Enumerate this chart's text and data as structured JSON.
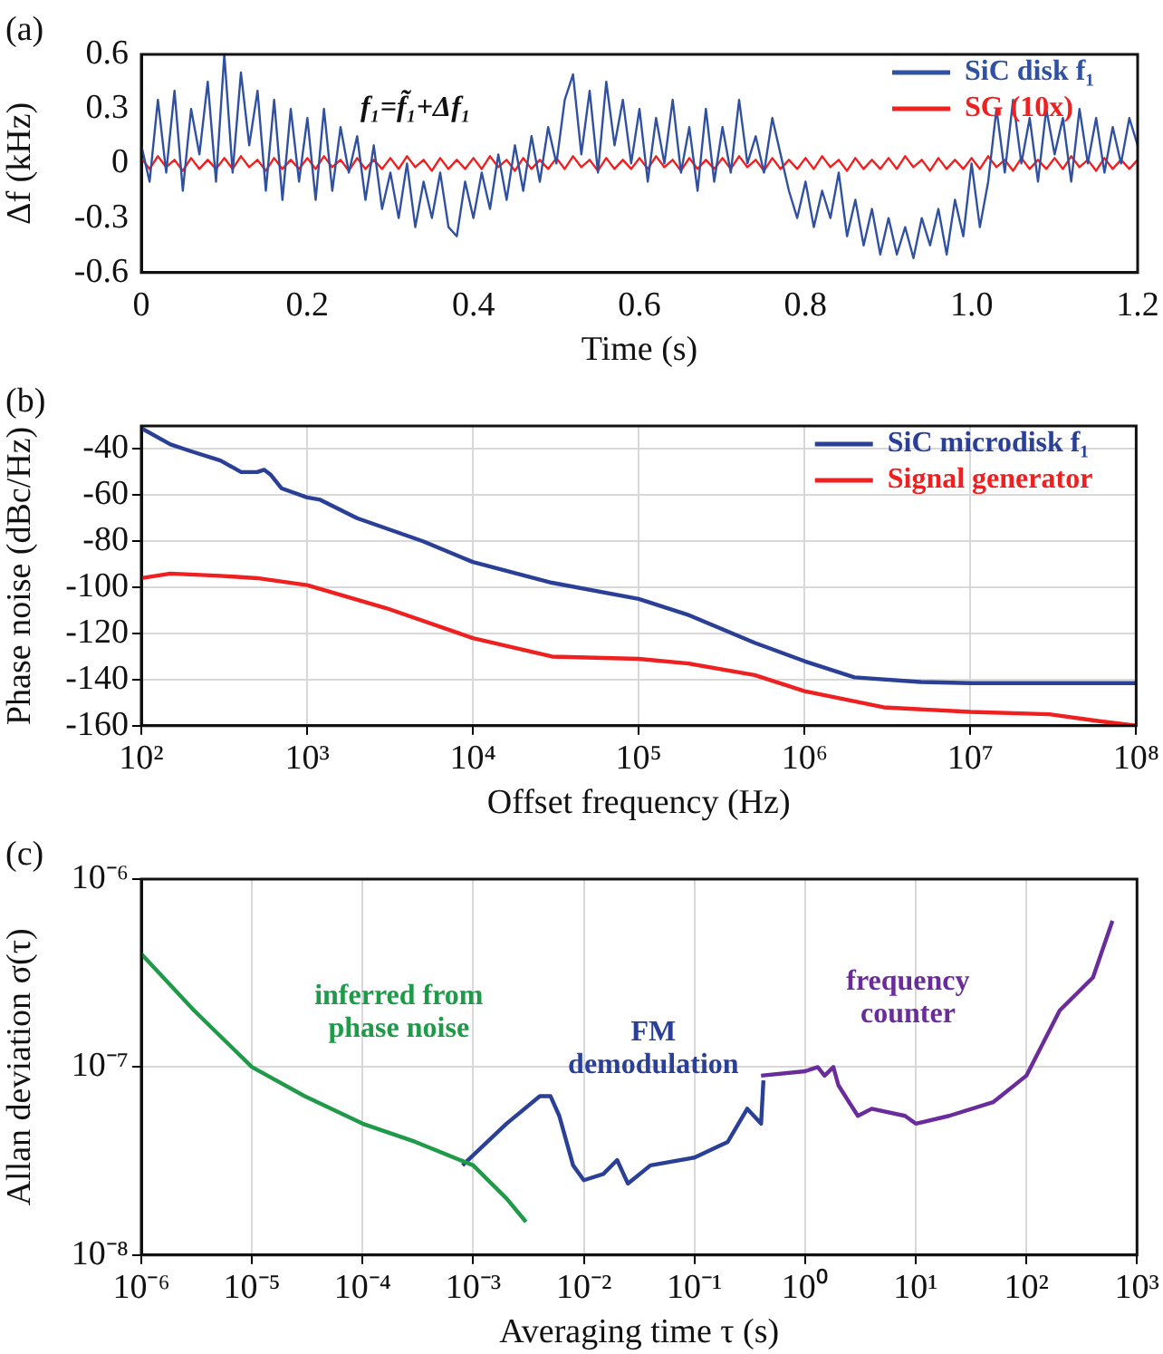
{
  "chart_data": [
    {
      "type": "line",
      "title": "(a)",
      "xlabel": "Time (s)",
      "ylabel": "Δf (kHz)",
      "annotations": [
        "f₁=f̃₁+Δf₁"
      ],
      "legend": "top right",
      "grid": false,
      "xlim": [
        0,
        1.2
      ],
      "xticks": [
        0,
        0.2,
        0.4,
        0.6,
        0.8,
        {
          "value": 1,
          "label": "1.0"
        },
        1.2
      ],
      "ylim": [
        -0.6,
        0.6
      ],
      "yticks": [
        -0.6,
        -0.3,
        0,
        0.3,
        0.6
      ],
      "x": [
        0,
        0.01,
        0.02,
        0.03,
        0.04,
        0.05,
        0.06,
        0.07,
        0.08,
        0.09,
        0.1,
        0.11,
        0.12,
        0.13,
        0.14,
        0.15,
        0.16,
        0.17,
        0.18,
        0.19,
        0.2,
        0.21,
        0.22,
        0.23,
        0.24,
        0.25,
        0.26,
        0.27,
        0.28,
        0.29,
        0.3,
        0.31,
        0.32,
        0.33,
        0.34,
        0.35,
        0.36,
        0.37,
        0.38,
        0.39,
        0.4,
        0.41,
        0.42,
        0.43,
        0.44,
        0.45,
        0.46,
        0.47,
        0.48,
        0.49,
        0.5,
        0.51,
        0.52,
        0.53,
        0.54,
        0.55,
        0.56,
        0.57,
        0.58,
        0.59,
        0.6,
        0.61,
        0.62,
        0.63,
        0.64,
        0.65,
        0.66,
        0.67,
        0.68,
        0.69,
        0.7,
        0.71,
        0.72,
        0.73,
        0.74,
        0.75,
        0.76,
        0.77,
        0.78,
        0.79,
        0.8,
        0.81,
        0.82,
        0.83,
        0.84,
        0.85,
        0.86,
        0.87,
        0.88,
        0.89,
        0.9,
        0.91,
        0.92,
        0.93,
        0.94,
        0.95,
        0.96,
        0.97,
        0.98,
        0.99,
        1,
        1.01,
        1.02,
        1.03,
        1.04,
        1.05,
        1.06,
        1.07,
        1.08,
        1.09,
        1.1,
        1.11,
        1.12,
        1.13,
        1.14,
        1.15,
        1.16,
        1.17,
        1.18,
        1.19,
        1.2
      ],
      "series": [
        {
          "name": "SiC disk f₁",
          "color": "#3050a0",
          "values": [
            0.1,
            -0.1,
            0.35,
            -0.05,
            0.4,
            -0.15,
            0.3,
            0.05,
            0.45,
            -0.1,
            0.6,
            -0.05,
            0.5,
            0.1,
            0.4,
            -0.15,
            0.35,
            -0.2,
            0.3,
            -0.1,
            0.25,
            -0.2,
            0.3,
            -0.15,
            0.2,
            -0.05,
            0.15,
            -0.2,
            0.1,
            -0.25,
            -0.05,
            -0.3,
            0,
            -0.35,
            -0.1,
            -0.3,
            -0.05,
            -0.35,
            -0.4,
            -0.1,
            -0.3,
            -0.05,
            -0.25,
            0.05,
            -0.2,
            0.1,
            -0.15,
            0.15,
            -0.1,
            0.2,
            0,
            0.35,
            0.49,
            0.05,
            0.4,
            -0.05,
            0.45,
            0.1,
            0.35,
            0,
            0.3,
            -0.1,
            0.25,
            0,
            0.35,
            -0.05,
            0.2,
            -0.15,
            0.3,
            -0.1,
            0.2,
            -0.05,
            0.35,
            0,
            0.15,
            -0.05,
            0.25,
            0.05,
            -0.15,
            -0.3,
            -0.1,
            -0.35,
            -0.15,
            -0.3,
            -0.05,
            -0.4,
            -0.2,
            -0.45,
            -0.25,
            -0.5,
            -0.3,
            -0.5,
            -0.35,
            -0.52,
            -0.3,
            -0.45,
            -0.25,
            -0.5,
            -0.2,
            -0.4,
            0,
            -0.35,
            -0.1,
            0.3,
            -0.05,
            0.35,
            0,
            0.25,
            -0.1,
            0.3,
            0.05,
            0.25,
            -0.1,
            0.3,
            0,
            0.25,
            -0.05,
            0.2,
            0,
            0.25,
            0.1
          ]
        },
        {
          "name": "SG (10x)",
          "color": "#ee2020",
          "values": [
            0.03,
            -0.03,
            0.04,
            -0.02,
            0.02,
            -0.04,
            0.03,
            -0.03,
            0.02,
            -0.03,
            0.03,
            -0.03,
            0.04,
            -0.02,
            0.02,
            -0.04,
            0.03,
            -0.03,
            0.02,
            -0.03,
            0.03,
            -0.03,
            0.04,
            -0.02,
            0.02,
            -0.04,
            0.03,
            -0.03,
            0.02,
            -0.03,
            0.03,
            -0.03,
            0.04,
            -0.02,
            0.02,
            -0.04,
            0.03,
            -0.03,
            0.02,
            -0.03,
            0.03,
            -0.03,
            0.04,
            -0.02,
            0.02,
            -0.04,
            0.03,
            -0.03,
            0.02,
            -0.03,
            0.03,
            -0.03,
            0.04,
            -0.02,
            0.02,
            -0.04,
            0.03,
            -0.03,
            0.02,
            -0.03,
            0.03,
            -0.03,
            0.04,
            -0.02,
            0.02,
            -0.04,
            0.03,
            -0.03,
            0.02,
            -0.03,
            0.03,
            -0.03,
            0.04,
            -0.02,
            0.02,
            -0.04,
            0.03,
            -0.03,
            0.02,
            -0.03,
            0.03,
            -0.03,
            0.04,
            -0.02,
            0.02,
            -0.04,
            0.03,
            -0.03,
            0.02,
            -0.03,
            0.03,
            -0.03,
            0.04,
            -0.02,
            0.02,
            -0.04,
            0.03,
            -0.03,
            0.02,
            -0.03,
            0.03,
            -0.03,
            0.04,
            -0.02,
            0.02,
            -0.04,
            0.03,
            -0.03,
            0.02,
            -0.03,
            0.03,
            -0.03,
            0.04,
            -0.02,
            0.02,
            -0.04,
            0.03,
            -0.03,
            0.02,
            -0.03,
            0.02
          ]
        }
      ]
    },
    {
      "type": "line",
      "title": "(b)",
      "xlabel": "Offset frequency (Hz)",
      "ylabel": "Phase noise (dBc/Hz)",
      "legend": "top right",
      "grid": true,
      "log": "x",
      "xlim": [
        100,
        100000000
      ],
      "xticks": [
        {
          "value": 100,
          "label": "10²"
        },
        {
          "value": 1000,
          "label": "10³"
        },
        {
          "value": 10000,
          "label": "10⁴"
        },
        {
          "value": 100000,
          "label": "10⁵"
        },
        {
          "value": 1000000,
          "label": "10⁶"
        },
        {
          "value": 10000000,
          "label": "10⁷"
        },
        {
          "value": 100000000,
          "label": "10⁸"
        }
      ],
      "ylim": [
        -160,
        -30
      ],
      "yticks": [
        -160,
        -140,
        -120,
        -100,
        -80,
        -60,
        -40
      ],
      "series": [
        {
          "name": "SiC microdisk f₁",
          "color": "#2a3f96",
          "x": [
            100,
            150,
            200,
            300,
            400,
            500,
            550,
            600,
            700,
            1000,
            1200,
            2000,
            5000,
            10000,
            30000,
            100000,
            200000,
            500000,
            1000000,
            2000000,
            5000000,
            10000000,
            100000000
          ],
          "values": [
            -31,
            -38,
            -41,
            -45,
            -50,
            -50,
            -49,
            -51,
            -57,
            -61,
            -62,
            -70,
            -80,
            -89,
            -98,
            -105,
            -112,
            -124,
            -132,
            -139,
            -141,
            -141.5,
            -141.5
          ]
        },
        {
          "name": "Signal generator",
          "color": "#ee2020",
          "x": [
            100,
            150,
            300,
            500,
            1000,
            3000,
            10000,
            30000,
            100000,
            200000,
            500000,
            1000000,
            3000000,
            10000000,
            30000000,
            60000000,
            100000000
          ],
          "values": [
            -96,
            -94,
            -95,
            -96,
            -99,
            -109,
            -122,
            -130,
            -131,
            -133,
            -138,
            -145,
            -152,
            -154,
            -155,
            -158,
            -160
          ]
        }
      ]
    },
    {
      "type": "line",
      "title": "(c)",
      "xlabel": "Averaging time τ (s)",
      "ylabel": "Allan deviation σ(τ)",
      "legend": false,
      "grid": true,
      "log": "xy",
      "xlim": [
        1e-06,
        1000
      ],
      "xticks": [
        {
          "value": 1e-06,
          "label": "10⁻⁶"
        },
        {
          "value": 1e-05,
          "label": "10⁻⁵"
        },
        {
          "value": 0.0001,
          "label": "10⁻⁴"
        },
        {
          "value": 0.001,
          "label": "10⁻³"
        },
        {
          "value": 0.01,
          "label": "10⁻²"
        },
        {
          "value": 0.1,
          "label": "10⁻¹"
        },
        {
          "value": 1,
          "label": "10⁰"
        },
        {
          "value": 10,
          "label": "10¹"
        },
        {
          "value": 100,
          "label": "10²"
        },
        {
          "value": 1000,
          "label": "10³"
        }
      ],
      "ylim": [
        1e-08,
        1e-06
      ],
      "yticks": [
        {
          "value": 1e-08,
          "label": "10⁻⁸"
        },
        {
          "value": 1e-07,
          "label": "10⁻⁷"
        },
        {
          "value": 1e-06,
          "label": "10⁻⁶"
        }
      ],
      "series": [
        {
          "name": "inferred from phase noise",
          "color": "#1e9a48",
          "x": [
            1e-06,
            3e-06,
            1e-05,
            3e-05,
            0.0001,
            0.0003,
            0.001,
            0.002,
            0.003
          ],
          "values": [
            4e-07,
            2e-07,
            1e-07,
            7e-08,
            5e-08,
            4e-08,
            3e-08,
            2e-08,
            1.5e-08
          ]
        },
        {
          "name": "FM demodulation",
          "color": "#2a3f96",
          "x": [
            0.0008,
            0.002,
            0.004,
            0.005,
            0.006,
            0.008,
            0.01,
            0.015,
            0.02,
            0.025,
            0.04,
            0.1,
            0.2,
            0.3,
            0.4,
            0.42
          ],
          "values": [
            3e-08,
            5e-08,
            7e-08,
            7e-08,
            5.5e-08,
            3e-08,
            2.5e-08,
            2.7e-08,
            3.2e-08,
            2.4e-08,
            3e-08,
            3.3e-08,
            4e-08,
            6e-08,
            5e-08,
            8.5e-08
          ]
        },
        {
          "name": "frequency counter",
          "color": "#6a2c9a",
          "x": [
            0.4,
            1,
            1.3,
            1.5,
            1.8,
            2,
            2.5,
            3,
            4,
            8,
            10,
            20,
            50,
            100,
            200,
            400,
            600
          ],
          "values": [
            9e-08,
            9.5e-08,
            1e-07,
            9e-08,
            1e-07,
            8e-08,
            6.5e-08,
            5.5e-08,
            6e-08,
            5.5e-08,
            5e-08,
            5.5e-08,
            6.5e-08,
            9e-08,
            2e-07,
            3e-07,
            6e-07
          ]
        }
      ]
    }
  ]
}
